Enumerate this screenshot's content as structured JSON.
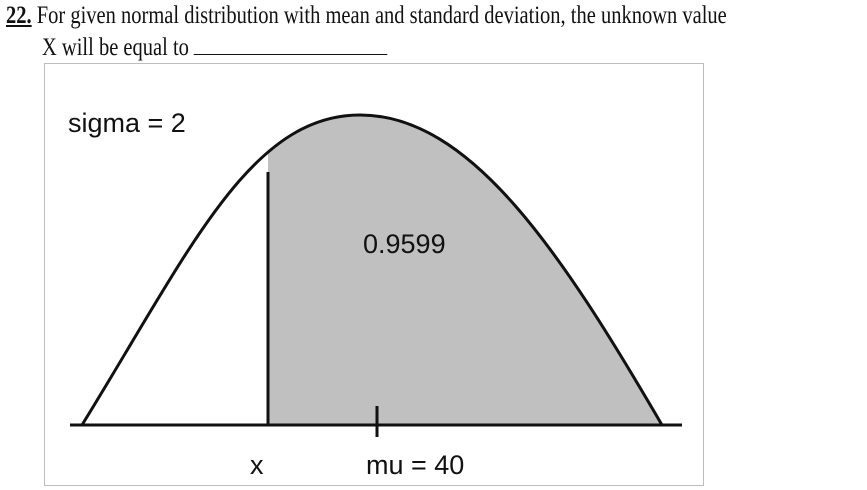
{
  "question": {
    "number": "22.",
    "line1": "For given normal distribution with mean and standard deviation, the unknown value",
    "line2": "X will be equal to"
  },
  "figure": {
    "sigma_label": "sigma = 2",
    "area_label": "0.9599",
    "x_label": "x",
    "mu_label": "mu = 40",
    "shade_color": "#c0c0c0"
  }
}
